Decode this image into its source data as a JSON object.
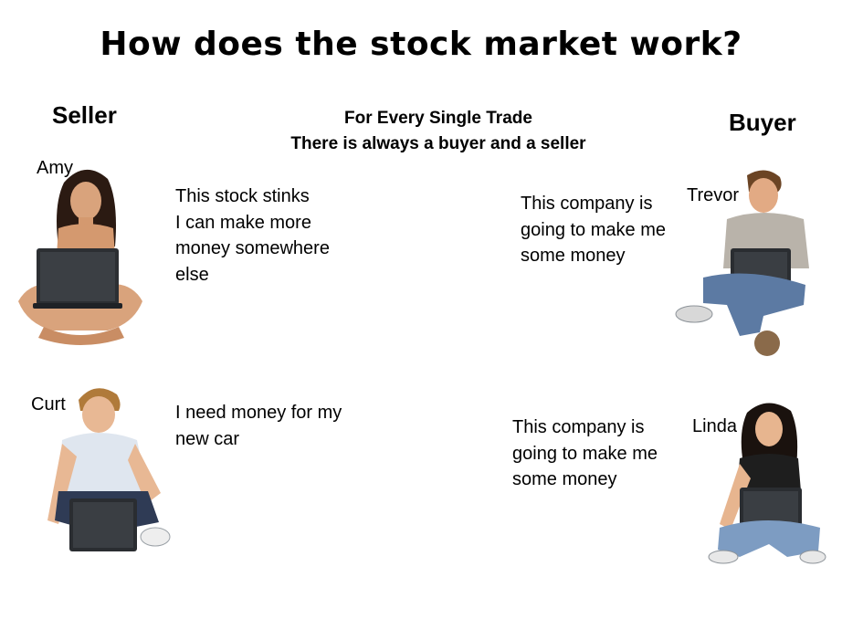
{
  "slide": {
    "title": "How does the stock market work?",
    "seller_heading": "Seller",
    "buyer_heading": "Buyer",
    "center_note_line1": "For Every Single Trade",
    "center_note_line2": "There is always a buyer and a seller"
  },
  "sellers": [
    {
      "name": "Amy",
      "quote": "This stock stinks\nI can make more\nmoney somewhere\nelse"
    },
    {
      "name": "Curt",
      "quote": "I need money for my\nnew car"
    }
  ],
  "buyers": [
    {
      "name": "Trevor",
      "quote": "This company is\ngoing to make me\nsome money"
    },
    {
      "name": "Linda",
      "quote": "This company is\ngoing to make me\nsome money"
    }
  ]
}
